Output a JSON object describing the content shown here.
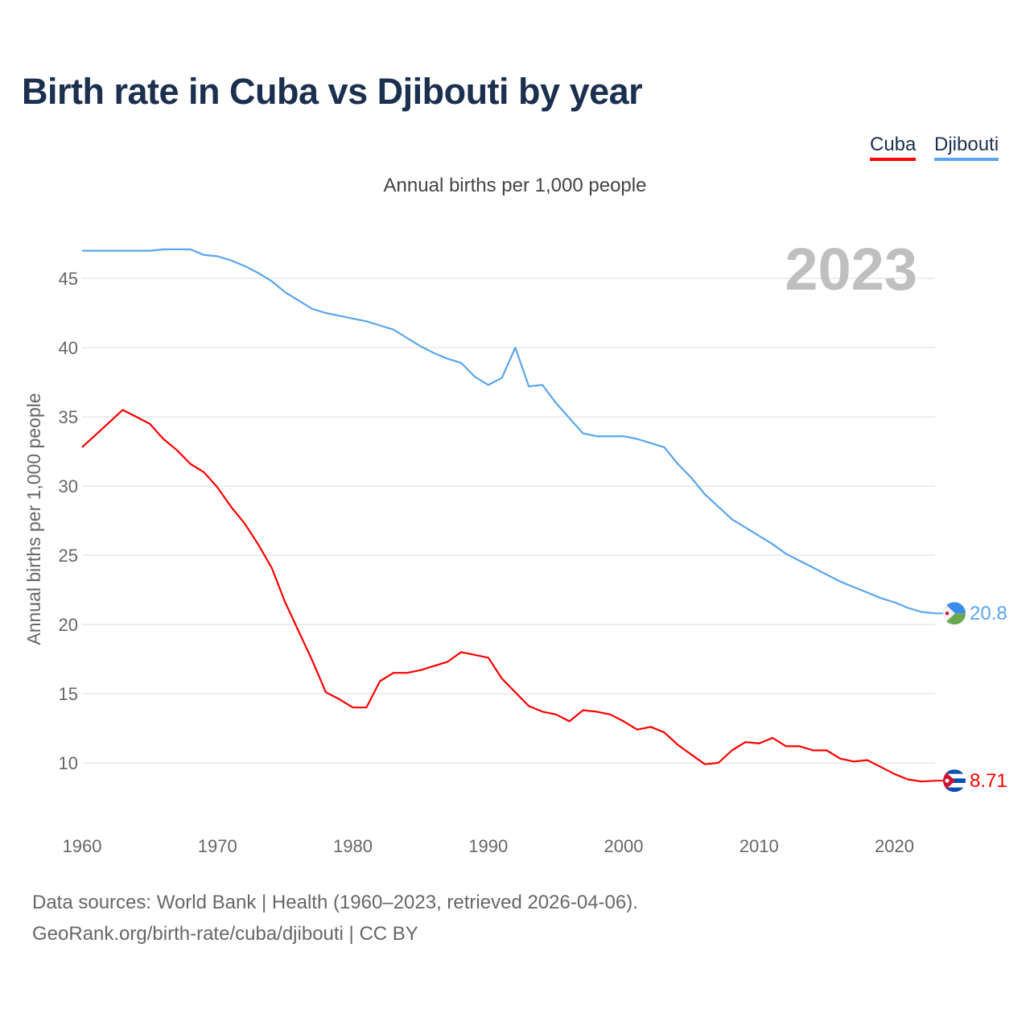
{
  "title": "Birth rate in Cuba vs Djibouti by year",
  "footer": {
    "sources": "Data sources: World Bank | Health (1960–2023, retrieved 2026-04-06).",
    "credit": "GeoRank.org/birth-rate/cuba/djibouti | CC BY"
  },
  "chart_data": {
    "type": "line",
    "title": "Birth rate in Cuba vs Djibouti by year",
    "subtitle": "Annual births per 1,000 people",
    "ylabel": "Annual births per 1,000 people",
    "xlabel": "",
    "year_watermark": "2023",
    "xlim": [
      1960,
      2023
    ],
    "ylim": [
      6,
      47.5
    ],
    "x_ticks": [
      1960,
      1970,
      1980,
      1990,
      2000,
      2010,
      2020
    ],
    "y_ticks": [
      10,
      15,
      20,
      25,
      30,
      35,
      40,
      45
    ],
    "grid": true,
    "legend_placement": "top-right",
    "x": [
      1960,
      1961,
      1962,
      1963,
      1964,
      1965,
      1966,
      1967,
      1968,
      1969,
      1970,
      1971,
      1972,
      1973,
      1974,
      1975,
      1976,
      1977,
      1978,
      1979,
      1980,
      1981,
      1982,
      1983,
      1984,
      1985,
      1986,
      1987,
      1988,
      1989,
      1990,
      1991,
      1992,
      1993,
      1994,
      1995,
      1996,
      1997,
      1998,
      1999,
      2000,
      2001,
      2002,
      2003,
      2004,
      2005,
      2006,
      2007,
      2008,
      2009,
      2010,
      2011,
      2012,
      2013,
      2014,
      2015,
      2016,
      2017,
      2018,
      2019,
      2020,
      2021,
      2022,
      2023
    ],
    "series": [
      {
        "name": "Cuba",
        "color": "#ff0000",
        "end_label": "8.71",
        "values": [
          32.8,
          33.7,
          34.6,
          35.5,
          35.0,
          34.5,
          33.4,
          32.6,
          31.6,
          31.0,
          29.9,
          28.5,
          27.3,
          25.8,
          24.1,
          21.6,
          19.5,
          17.4,
          15.1,
          14.6,
          14.0,
          14.0,
          15.9,
          16.5,
          16.5,
          16.7,
          17.0,
          17.3,
          18.0,
          17.8,
          17.6,
          16.1,
          15.1,
          14.1,
          13.7,
          13.5,
          13.0,
          13.8,
          13.7,
          13.5,
          13.0,
          12.4,
          12.6,
          12.2,
          11.3,
          10.6,
          9.9,
          10.0,
          10.9,
          11.5,
          11.4,
          11.8,
          11.2,
          11.2,
          10.9,
          10.9,
          10.3,
          10.1,
          10.2,
          9.7,
          9.2,
          8.8,
          8.65,
          8.71
        ]
      },
      {
        "name": "Djibouti",
        "color": "#5aa5ec",
        "end_label": "20.8",
        "values": [
          47.0,
          47.0,
          47.0,
          47.0,
          47.0,
          47.0,
          47.1,
          47.1,
          47.1,
          46.7,
          46.6,
          46.3,
          45.9,
          45.4,
          44.8,
          44.0,
          43.4,
          42.8,
          42.5,
          42.3,
          42.1,
          41.9,
          41.6,
          41.3,
          40.7,
          40.1,
          39.6,
          39.2,
          38.9,
          37.9,
          37.3,
          37.8,
          40.0,
          37.2,
          37.3,
          36.0,
          34.9,
          33.8,
          33.6,
          33.6,
          33.6,
          33.4,
          33.1,
          32.8,
          31.6,
          30.6,
          29.4,
          28.5,
          27.6,
          27.0,
          26.4,
          25.8,
          25.1,
          24.6,
          24.1,
          23.6,
          23.1,
          22.7,
          22.3,
          21.9,
          21.6,
          21.2,
          20.9,
          20.8
        ]
      }
    ]
  }
}
